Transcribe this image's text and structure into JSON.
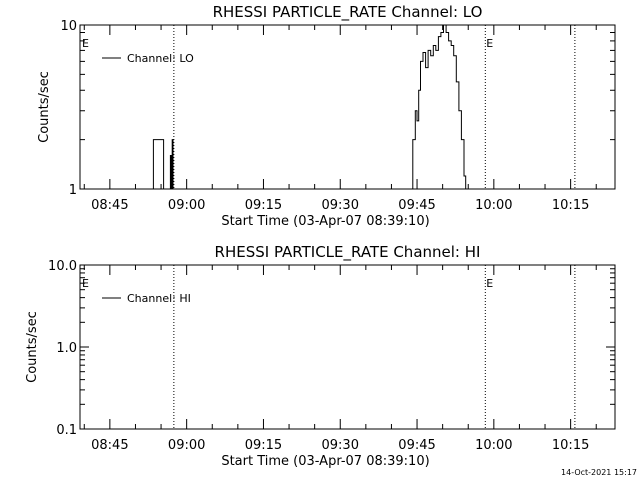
{
  "chart_data": [
    {
      "type": "line",
      "title": "RHESSI PARTICLE_RATE Channel: LO",
      "xlabel": "Start Time (03-Apr-07 08:39:10)",
      "ylabel": "Counts/sec",
      "yscale": "log",
      "ylim": [
        1,
        10
      ],
      "ytick_labels": [
        "1",
        "10"
      ],
      "xlim": [
        "08:39:10",
        "10:23:40"
      ],
      "xtick_labels": [
        "08:45",
        "09:00",
        "09:15",
        "09:30",
        "09:45",
        "10:00",
        "10:15"
      ],
      "vlines": [
        {
          "x": "08:57:30",
          "label": ""
        },
        {
          "x": "09:58:20",
          "label": "E"
        },
        {
          "x": "10:15:50",
          "label": ""
        }
      ],
      "corner_label": "E",
      "legend": {
        "position": "top-left",
        "entries": [
          "Channel: LO"
        ]
      },
      "series": [
        {
          "name": "Channel: LO",
          "points": [
            [
              "08:39:10",
              1
            ],
            [
              "08:53:10",
              1
            ],
            [
              "08:53:30",
              2
            ],
            [
              "08:55:20",
              2
            ],
            [
              "08:55:30",
              1
            ],
            [
              "08:56:40",
              1
            ],
            [
              "08:56:50",
              1.6
            ],
            [
              "08:57:00",
              1
            ],
            [
              "08:57:10",
              2
            ],
            [
              "08:57:20",
              1
            ],
            [
              "09:43:40",
              1
            ],
            [
              "09:44:10",
              2
            ],
            [
              "09:44:40",
              3
            ],
            [
              "09:45:00",
              2.6
            ],
            [
              "09:45:20",
              4
            ],
            [
              "09:45:40",
              6
            ],
            [
              "09:46:10",
              6.8
            ],
            [
              "09:46:40",
              5.5
            ],
            [
              "09:47:10",
              7
            ],
            [
              "09:47:40",
              6.5
            ],
            [
              "09:48:10",
              7.5
            ],
            [
              "09:48:40",
              7
            ],
            [
              "09:49:10",
              8.5
            ],
            [
              "09:49:40",
              9
            ],
            [
              "09:50:10",
              10
            ],
            [
              "09:50:40",
              9
            ],
            [
              "09:51:10",
              8
            ],
            [
              "09:51:40",
              7.5
            ],
            [
              "09:52:10",
              6.5
            ],
            [
              "09:52:40",
              4.5
            ],
            [
              "09:53:10",
              3
            ],
            [
              "09:53:40",
              2
            ],
            [
              "09:54:10",
              1.2
            ],
            [
              "09:54:30",
              1
            ],
            [
              "10:23:40",
              1
            ]
          ]
        }
      ]
    },
    {
      "type": "line",
      "title": "RHESSI PARTICLE_RATE Channel: HI",
      "xlabel": "Start Time (03-Apr-07 08:39:10)",
      "ylabel": "Counts/sec",
      "yscale": "log",
      "ylim": [
        0.1,
        10
      ],
      "ytick_labels": [
        "0.1",
        "1.0",
        "10.0"
      ],
      "xlim": [
        "08:39:10",
        "10:23:40"
      ],
      "xtick_labels": [
        "08:45",
        "09:00",
        "09:15",
        "09:30",
        "09:45",
        "10:00",
        "10:15"
      ],
      "vlines": [
        {
          "x": "08:57:30",
          "label": ""
        },
        {
          "x": "09:58:20",
          "label": "E"
        },
        {
          "x": "10:15:50",
          "label": ""
        }
      ],
      "corner_label": "E",
      "legend": {
        "position": "top-left",
        "entries": [
          "Channel: HI"
        ]
      },
      "series": [
        {
          "name": "Channel: HI",
          "points": []
        }
      ]
    }
  ],
  "footer": {
    "timestamp": "14-Oct-2021 15:17"
  }
}
